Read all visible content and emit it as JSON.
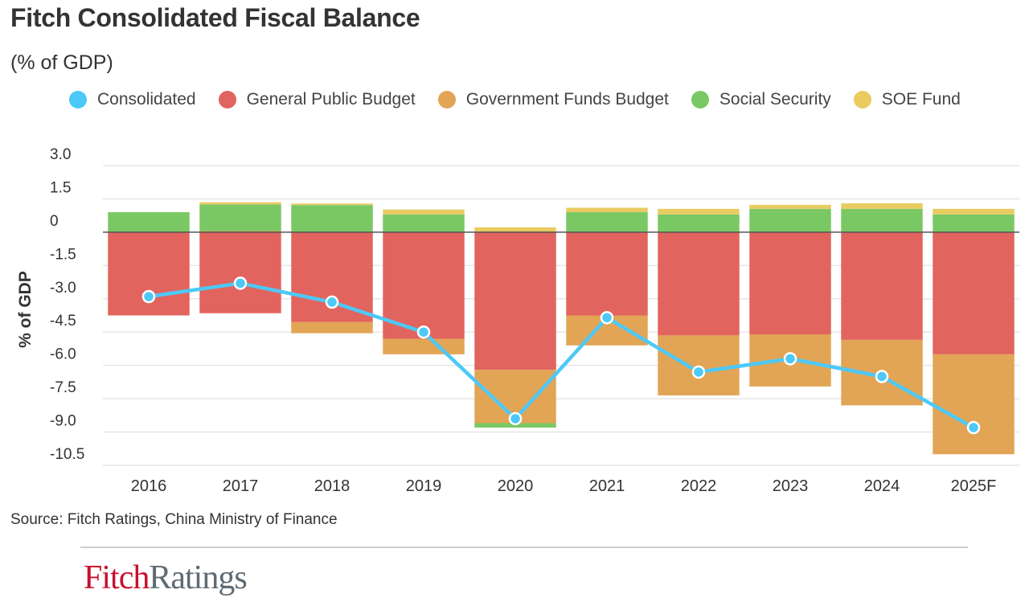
{
  "title": "Fitch Consolidated Fiscal Balance",
  "subtitle": "(% of GDP)",
  "source": "Source: Fitch Ratings, China Ministry of Finance",
  "logo": {
    "part1": "Fitch",
    "part2": "Ratings"
  },
  "legend": [
    {
      "label": "Consolidated",
      "color": "#4cc9f7"
    },
    {
      "label": "General Public Budget",
      "color": "#e2645e"
    },
    {
      "label": "Government Funds Budget",
      "color": "#e2a556"
    },
    {
      "label": "Social Security",
      "color": "#7ac864"
    },
    {
      "label": "SOE Fund",
      "color": "#e9cb62"
    }
  ],
  "chart_data": {
    "type": "bar",
    "stacked": true,
    "title": "Fitch Consolidated Fiscal Balance",
    "subtitle": "(% of GDP)",
    "xlabel": "",
    "ylabel": "% of GDP",
    "ylim": [
      -10.5,
      3.0
    ],
    "yticks": [
      3.0,
      1.5,
      0,
      -1.5,
      -3.0,
      -4.5,
      -6.0,
      -7.5,
      -9.0,
      -10.5
    ],
    "ytick_labels": [
      "3.0",
      "1.5",
      "0",
      "-1.5",
      "-3.0",
      "-4.5",
      "-6.0",
      "-7.5",
      "-9.0",
      "-10.5"
    ],
    "grid": true,
    "legend_position": "top",
    "categories": [
      "2016",
      "2017",
      "2018",
      "2019",
      "2020",
      "2021",
      "2022",
      "2023",
      "2024",
      "2025F"
    ],
    "series": [
      {
        "name": "General Public Budget",
        "type": "bar",
        "color": "#e2645e",
        "values": [
          -3.75,
          -3.65,
          -4.05,
          -4.8,
          -6.2,
          -3.75,
          -4.65,
          -4.6,
          -4.85,
          -5.5
        ]
      },
      {
        "name": "Government Funds Budget",
        "type": "bar",
        "color": "#e2a556",
        "values": [
          0.0,
          0.05,
          -0.5,
          -0.7,
          -2.4,
          -1.35,
          -2.7,
          -2.35,
          -2.95,
          -4.5
        ]
      },
      {
        "name": "Social Security",
        "type": "bar",
        "color": "#7ac864",
        "values": [
          0.9,
          1.2,
          1.22,
          0.8,
          -0.2,
          0.9,
          0.8,
          1.05,
          1.05,
          0.8
        ]
      },
      {
        "name": "SOE Fund",
        "type": "bar",
        "color": "#e9cb62",
        "values": [
          0.0,
          0.1,
          0.07,
          0.22,
          0.22,
          0.2,
          0.25,
          0.18,
          0.25,
          0.25
        ]
      },
      {
        "name": "Consolidated",
        "type": "line",
        "color": "#4cc9f7",
        "values": [
          -2.9,
          -2.3,
          -3.15,
          -4.5,
          -8.4,
          -3.85,
          -6.3,
          -5.7,
          -6.5,
          -8.8
        ]
      }
    ]
  }
}
